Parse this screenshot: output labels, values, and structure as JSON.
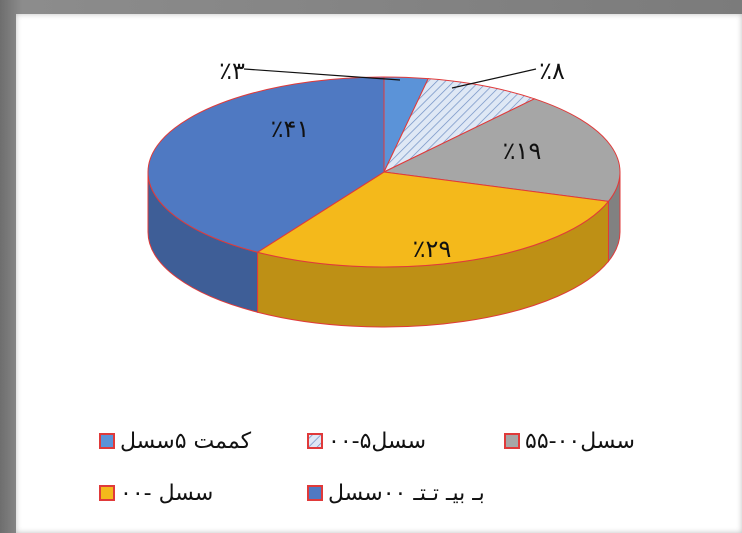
{
  "chart_data": {
    "type": "pie",
    "title": "",
    "categories": [
      "کمتر از ۵ سال",
      "۵-۱۰ سال",
      "۱۰-۵۵ سال",
      "۲۰-۱۰ سال",
      "بیشتر از ۲۰ سال"
    ],
    "values": [
      3,
      8,
      19,
      29,
      41
    ],
    "data_labels": [
      "٪۳",
      "٪۸",
      "٪۱۹",
      "٪۲۹",
      "٪۴۱"
    ],
    "colors": [
      "#5b93d8",
      "#c9daf0",
      "#a6a6a6",
      "#f4b91b",
      "#4f79c2"
    ],
    "legend": {
      "placement": "bottom",
      "entries": [
        "کممت ۵سسل",
        "۰۰-۵سسل",
        "۵۵-۰۰سسل",
        "بـ بیـ تـتـ ۰۰سسل",
        "۰۰- سسل"
      ]
    }
  }
}
